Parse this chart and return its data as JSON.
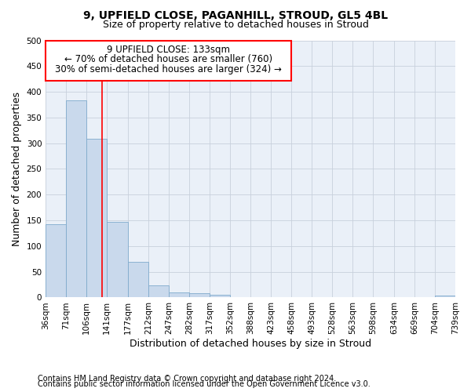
{
  "title1": "9, UPFIELD CLOSE, PAGANHILL, STROUD, GL5 4BL",
  "title2": "Size of property relative to detached houses in Stroud",
  "xlabel": "Distribution of detached houses by size in Stroud",
  "ylabel": "Number of detached properties",
  "footer1": "Contains HM Land Registry data © Crown copyright and database right 2024.",
  "footer2": "Contains public sector information licensed under the Open Government Licence v3.0.",
  "annotation_line1": "9 UPFIELD CLOSE: 133sqm",
  "annotation_line2": "← 70% of detached houses are smaller (760)",
  "annotation_line3": "30% of semi-detached houses are larger (324) →",
  "bar_color": "#c9d9ec",
  "bar_edgecolor": "#7faacc",
  "redline_x": 133,
  "bins": [
    36,
    71,
    106,
    141,
    177,
    212,
    247,
    282,
    317,
    352,
    388,
    423,
    458,
    493,
    528,
    563,
    598,
    634,
    669,
    704,
    739
  ],
  "bar_heights": [
    143,
    383,
    308,
    147,
    70,
    23,
    10,
    8,
    5,
    1,
    0,
    0,
    0,
    0,
    0,
    0,
    0,
    0,
    0,
    4
  ],
  "ylim": [
    0,
    500
  ],
  "yticks": [
    0,
    50,
    100,
    150,
    200,
    250,
    300,
    350,
    400,
    450,
    500
  ],
  "background_color": "#ffffff",
  "plot_bg_color": "#eaf0f8",
  "grid_color": "#c8d0dc",
  "title1_fontsize": 10,
  "title2_fontsize": 9,
  "axis_label_fontsize": 9,
  "tick_fontsize": 7.5,
  "annotation_fontsize": 8.5,
  "footer_fontsize": 7
}
